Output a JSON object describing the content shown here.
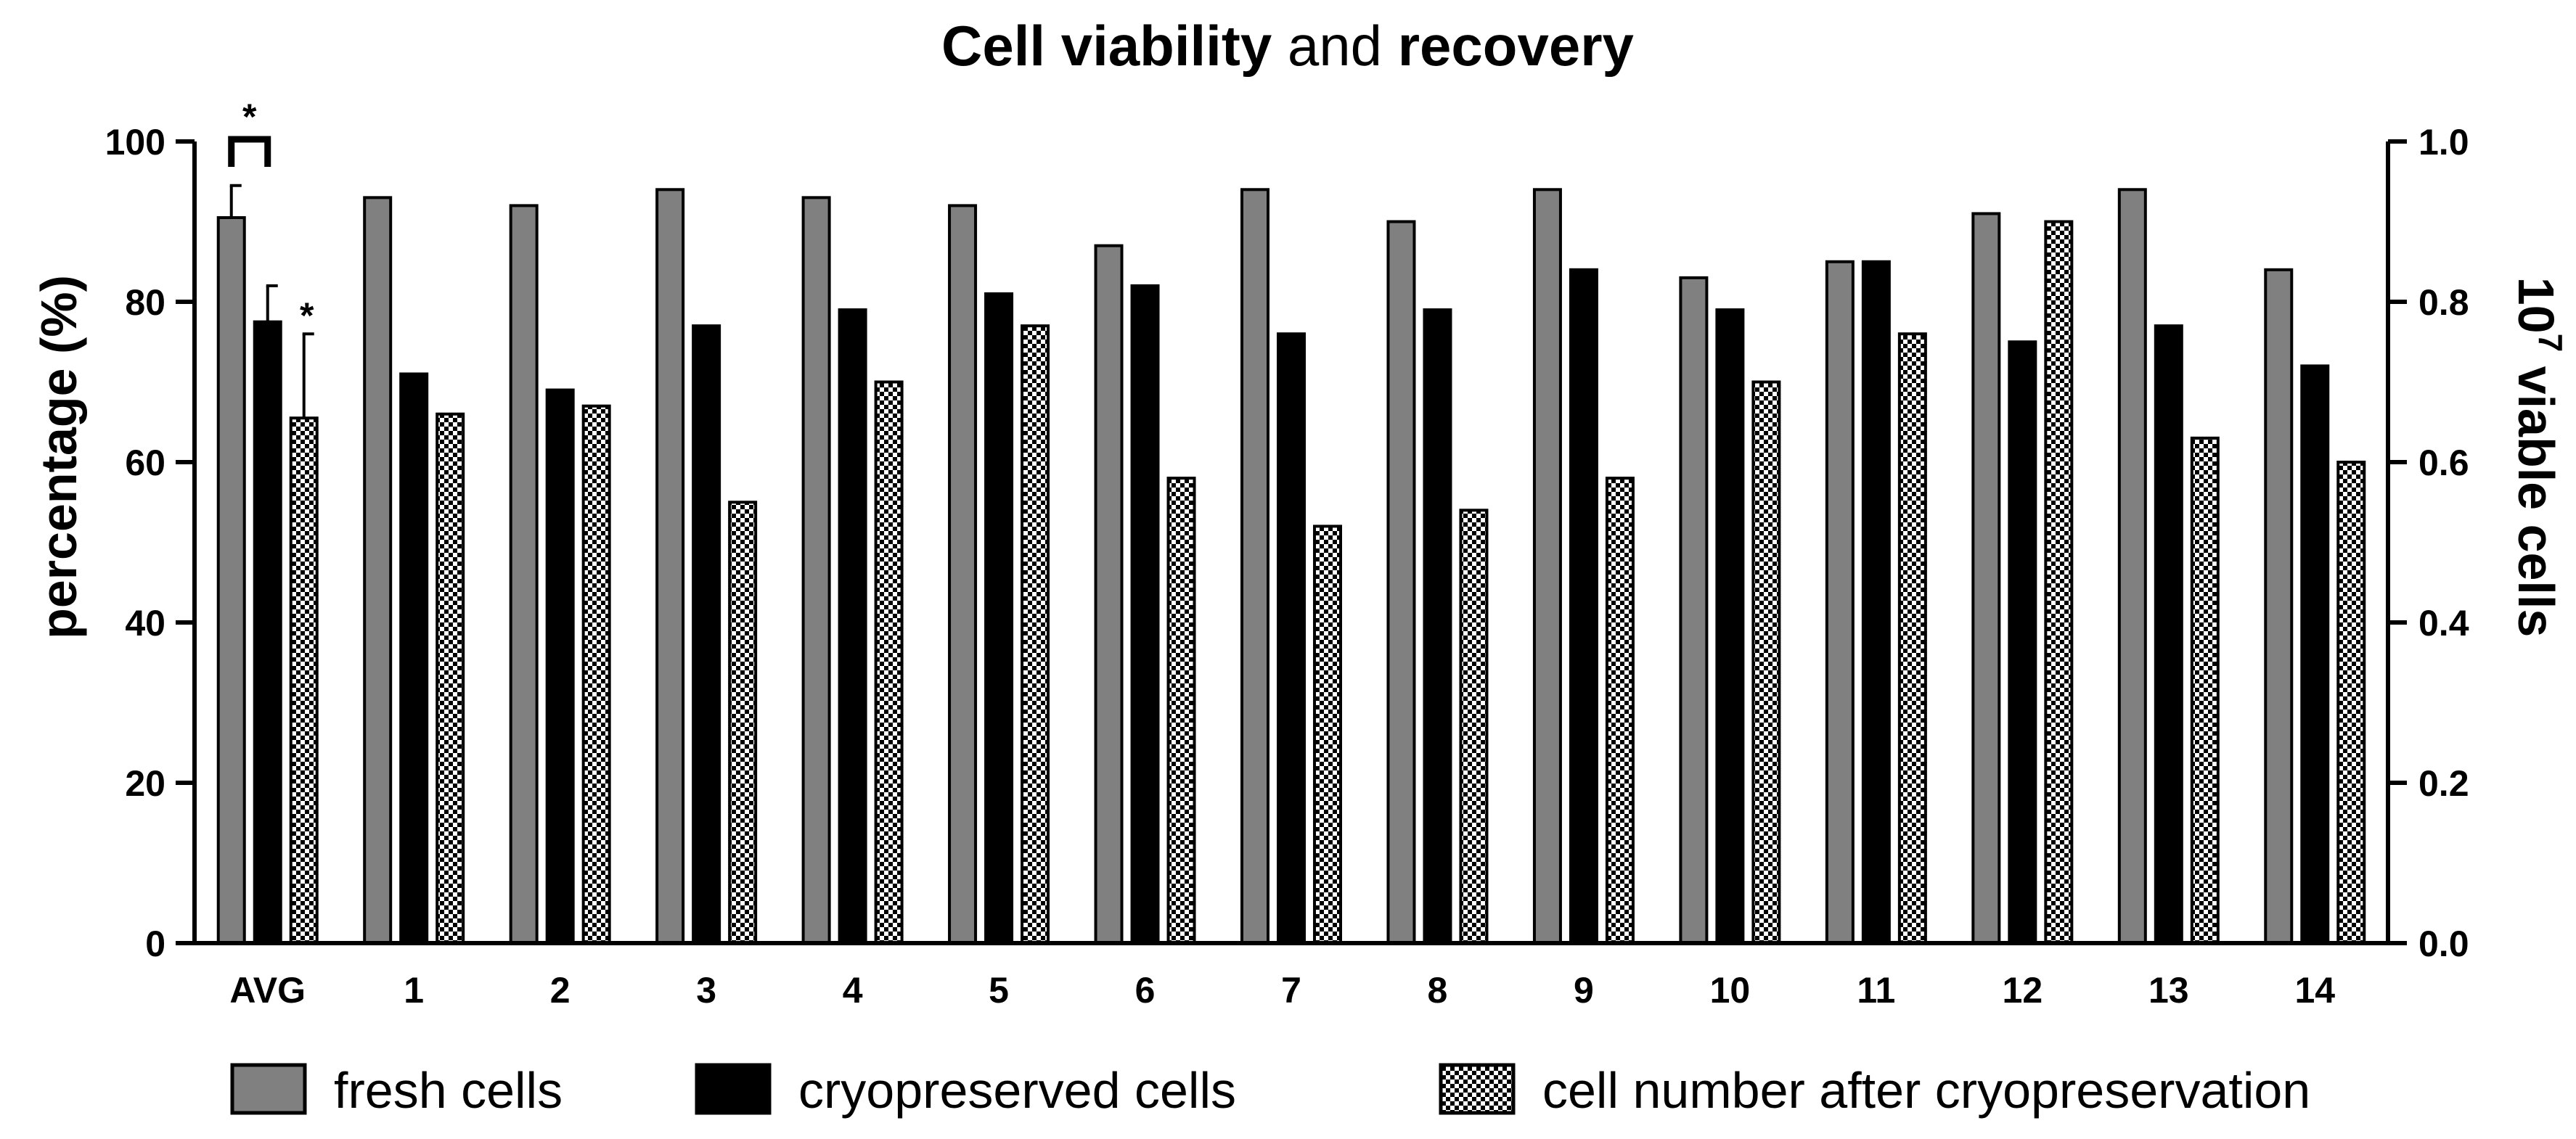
{
  "chart_data": {
    "type": "bar",
    "title_parts": [
      {
        "text": "Cell viability",
        "bold": true
      },
      {
        "text": " and ",
        "bold": false
      },
      {
        "text": "recovery",
        "bold": true
      }
    ],
    "categories": [
      "AVG",
      "1",
      "2",
      "3",
      "4",
      "5",
      "6",
      "7",
      "8",
      "9",
      "10",
      "11",
      "12",
      "13",
      "14"
    ],
    "series": [
      {
        "name": "fresh cells",
        "axis": "left",
        "color": "#808080",
        "pattern": "solid",
        "values": [
          90.5,
          93,
          92,
          94,
          93,
          92,
          87,
          94,
          90,
          94,
          83,
          85,
          91,
          94,
          84
        ],
        "error_avg": 4
      },
      {
        "name": "cryopreserved cells",
        "axis": "left",
        "color": "#000000",
        "pattern": "solid",
        "values": [
          77.5,
          71,
          69,
          77,
          79,
          81,
          82,
          76,
          79,
          84,
          79,
          85,
          75,
          77,
          72
        ],
        "error_avg": 4.5
      },
      {
        "name": "cell number after cryopreservation",
        "axis": "right",
        "color": "#000000",
        "pattern": "checker",
        "values": [
          0.655,
          0.66,
          0.67,
          0.55,
          0.7,
          0.77,
          0.58,
          0.52,
          0.54,
          0.58,
          0.7,
          0.76,
          0.9,
          0.63,
          0.6
        ],
        "error_avg": 0.105
      }
    ],
    "ylabel": "percentage (%)",
    "ylim": [
      0,
      100
    ],
    "yticks": [
      "0",
      "20",
      "40",
      "60",
      "80",
      "100"
    ],
    "y2label_base": "10",
    "y2label_exp": "7",
    "y2label_rest": " viable cells",
    "y2lim": [
      0,
      1.0
    ],
    "y2ticks": [
      "0.0",
      "0.2",
      "0.4",
      "0.6",
      "0.8",
      "1.0"
    ],
    "significance": [
      {
        "text": "*",
        "type": "bracket",
        "between": [
          "fresh cells",
          "cryopreserved cells"
        ],
        "category": "AVG"
      },
      {
        "text": "*",
        "type": "label",
        "series": "cell number after cryopreservation",
        "category": "AVG"
      }
    ],
    "legend_position": "bottom"
  }
}
